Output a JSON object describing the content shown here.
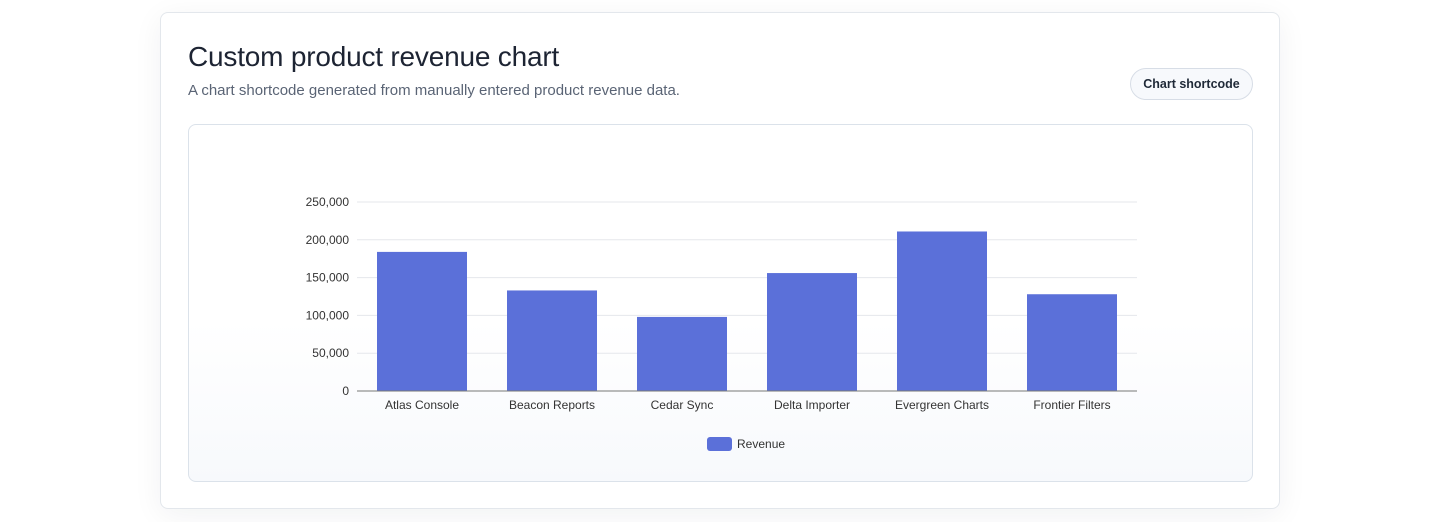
{
  "card": {
    "title": "Custom product revenue chart",
    "subtitle": "A chart shortcode generated from manually entered product revenue data.",
    "shortcode_button_label": "Chart shortcode"
  },
  "colors": {
    "bar": "#5b70d9",
    "grid": "#e5e7eb",
    "axis": "#777777",
    "text": "#333333"
  },
  "chart_data": {
    "type": "bar",
    "categories": [
      "Atlas Console",
      "Beacon Reports",
      "Cedar Sync",
      "Delta Importer",
      "Evergreen Charts",
      "Frontier Filters"
    ],
    "series": [
      {
        "name": "Revenue",
        "values": [
          184000,
          133000,
          98000,
          156000,
          211000,
          128000
        ]
      }
    ],
    "yticks": [
      "0",
      "50,000",
      "100,000",
      "150,000",
      "200,000",
      "250,000"
    ],
    "ylim": [
      0,
      250000
    ],
    "grid": true,
    "legend": "bottom-center"
  }
}
